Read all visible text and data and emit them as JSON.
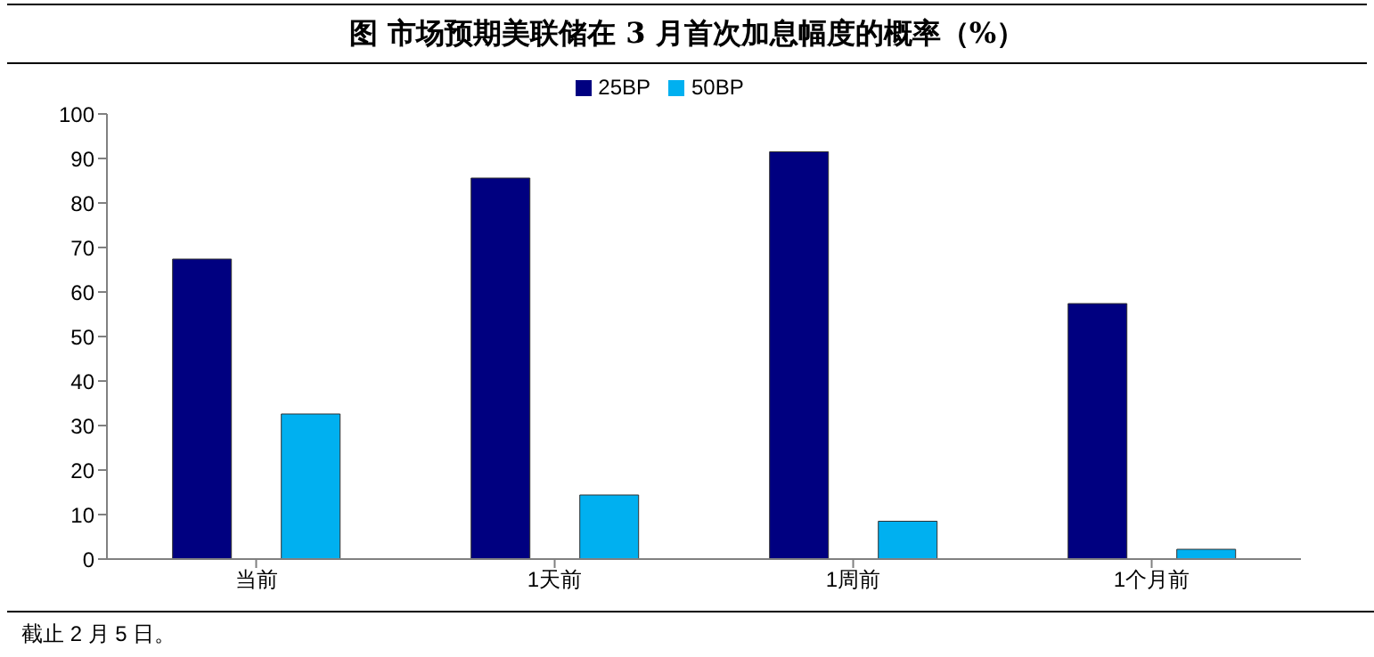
{
  "chart_data": {
    "type": "bar",
    "title": "图  市场预期美联储在 3 月首次加息幅度的概率（%）",
    "categories": [
      "当前",
      "1天前",
      "1周前",
      "1个月前"
    ],
    "series": [
      {
        "name": "25BP",
        "color": "#000080",
        "values": [
          67.4,
          85.6,
          91.5,
          57.4
        ]
      },
      {
        "name": "50BP",
        "color": "#00b0f0",
        "values": [
          32.6,
          14.4,
          8.5,
          2.2
        ]
      }
    ],
    "ylim": [
      0,
      100
    ],
    "yticks": [
      0,
      10,
      20,
      30,
      40,
      50,
      60,
      70,
      80,
      90,
      100
    ],
    "grid": false,
    "legend": "top",
    "annotations": [
      "截止 2 月 5 日。"
    ]
  }
}
